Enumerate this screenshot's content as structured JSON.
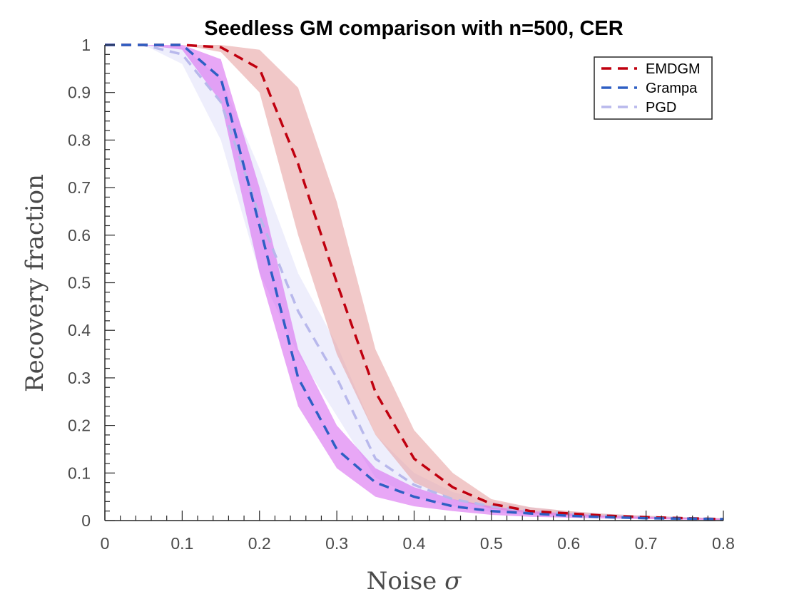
{
  "chart_data": {
    "type": "line",
    "title": "Seedless GM comparison with n=500, CER",
    "xlabel": "Noise σ",
    "xlabel_text": "Noise ",
    "xlabel_symbol": "σ",
    "ylabel": "Recovery fraction",
    "xlim": [
      0,
      0.8
    ],
    "ylim": [
      0,
      1
    ],
    "xticks": [
      "0",
      "0.1",
      "0.2",
      "0.3",
      "0.4",
      "0.5",
      "0.6",
      "0.7",
      "0.8"
    ],
    "yticks": [
      "0",
      "0.1",
      "0.2",
      "0.3",
      "0.4",
      "0.5",
      "0.6",
      "0.7",
      "0.8",
      "0.9",
      "1"
    ],
    "grid": false,
    "legend_position": "top-right",
    "x": [
      0,
      0.05,
      0.1,
      0.15,
      0.2,
      0.25,
      0.3,
      0.35,
      0.4,
      0.45,
      0.5,
      0.55,
      0.6,
      0.65,
      0.7,
      0.75,
      0.8
    ],
    "series": [
      {
        "name": "EMDGM",
        "line_color": "#c0000f",
        "band_color": "#e8a4a4",
        "values": [
          1,
          1,
          1,
          0.995,
          0.95,
          0.75,
          0.5,
          0.27,
          0.13,
          0.07,
          0.035,
          0.02,
          0.015,
          0.01,
          0.007,
          0.005,
          0.003
        ],
        "upper": [
          1,
          1,
          1,
          1,
          0.99,
          0.91,
          0.67,
          0.36,
          0.19,
          0.1,
          0.045,
          0.028,
          0.02,
          0.014,
          0.01,
          0.007,
          0.005
        ],
        "lower": [
          1,
          1,
          1,
          0.985,
          0.9,
          0.6,
          0.35,
          0.18,
          0.08,
          0.045,
          0.025,
          0.015,
          0.01,
          0.007,
          0.004,
          0.003,
          0.001
        ]
      },
      {
        "name": "Grampa",
        "line_color": "#2e5fc4",
        "band_color": "#d86cf0",
        "values": [
          1,
          1,
          1,
          0.93,
          0.62,
          0.3,
          0.15,
          0.08,
          0.05,
          0.03,
          0.02,
          0.015,
          0.01,
          0.007,
          0.005,
          0.004,
          0.003
        ],
        "upper": [
          1,
          1,
          1,
          0.97,
          0.7,
          0.36,
          0.2,
          0.11,
          0.07,
          0.045,
          0.03,
          0.02,
          0.015,
          0.01,
          0.008,
          0.006,
          0.004
        ],
        "lower": [
          1,
          1,
          0.99,
          0.88,
          0.52,
          0.24,
          0.11,
          0.05,
          0.03,
          0.02,
          0.012,
          0.008,
          0.006,
          0.004,
          0.003,
          0.002,
          0.001
        ]
      },
      {
        "name": "PGD",
        "line_color": "#b8b8ec",
        "band_color": "#ebebfb",
        "values": [
          1,
          1,
          0.98,
          0.88,
          0.64,
          0.44,
          0.3,
          0.13,
          0.075,
          0.045,
          0.03,
          0.02,
          0.015,
          0.01,
          0.007,
          0.005,
          0.003
        ],
        "upper": [
          1,
          1,
          0.995,
          0.93,
          0.74,
          0.52,
          0.37,
          0.18,
          0.1,
          0.06,
          0.04,
          0.028,
          0.02,
          0.014,
          0.01,
          0.007,
          0.005
        ],
        "lower": [
          1,
          1,
          0.96,
          0.8,
          0.52,
          0.35,
          0.22,
          0.09,
          0.05,
          0.03,
          0.018,
          0.012,
          0.009,
          0.006,
          0.004,
          0.003,
          0.001
        ]
      }
    ]
  }
}
